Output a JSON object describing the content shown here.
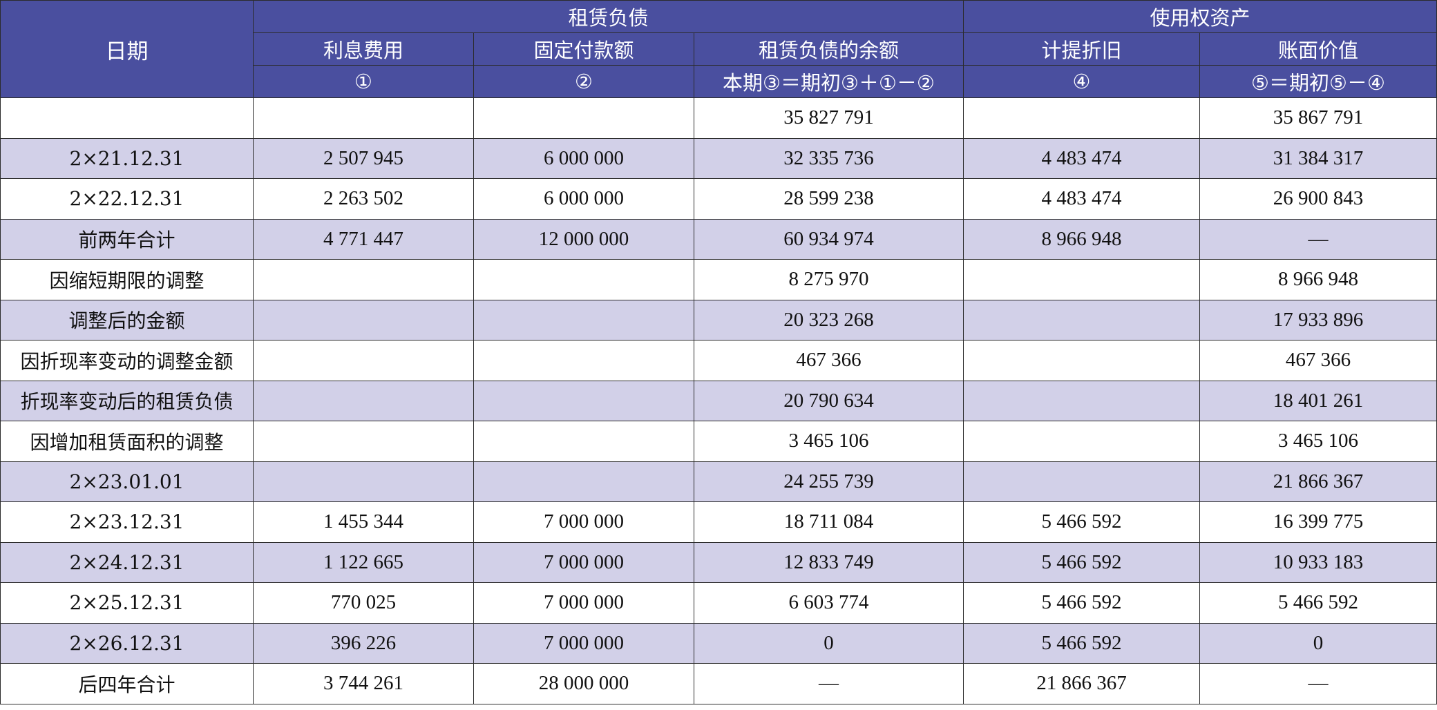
{
  "header": {
    "date_label": "日期",
    "lease_liability_group": "租赁负债",
    "rou_asset_group": "使用权资产",
    "columns": [
      {
        "label": "利息费用",
        "formula": "①"
      },
      {
        "label": "固定付款额",
        "formula": "②"
      },
      {
        "label": "租赁负债的余额",
        "formula": "本期③＝期初③＋①－②"
      },
      {
        "label": "计提折旧",
        "formula": "④"
      },
      {
        "label": "账面价值",
        "formula": "⑤＝期初⑤－④"
      }
    ]
  },
  "rows": [
    {
      "date": "",
      "interest": "",
      "payment": "",
      "balance": "35 827 791",
      "depreciation": "",
      "book_value": "35 867 791"
    },
    {
      "date": "2×21.12.31",
      "interest": "2 507 945",
      "payment": "6 000 000",
      "balance": "32 335 736",
      "depreciation": "4 483 474",
      "book_value": "31 384 317"
    },
    {
      "date": "2×22.12.31",
      "interest": "2 263 502",
      "payment": "6 000 000",
      "balance": "28 599 238",
      "depreciation": "4 483 474",
      "book_value": "26 900 843"
    },
    {
      "date": "前两年合计",
      "interest": "4 771 447",
      "payment": "12 000 000",
      "balance": "60 934 974",
      "depreciation": "8 966 948",
      "book_value": "—"
    },
    {
      "date": "因缩短期限的调整",
      "interest": "",
      "payment": "",
      "balance": "8 275 970",
      "depreciation": "",
      "book_value": "8 966 948"
    },
    {
      "date": "调整后的金额",
      "interest": "",
      "payment": "",
      "balance": "20 323 268",
      "depreciation": "",
      "book_value": "17 933 896"
    },
    {
      "date": "因折现率变动的调整金额",
      "interest": "",
      "payment": "",
      "balance": "467 366",
      "depreciation": "",
      "book_value": "467 366"
    },
    {
      "date": "折现率变动后的租赁负债",
      "interest": "",
      "payment": "",
      "balance": "20 790 634",
      "depreciation": "",
      "book_value": "18 401 261"
    },
    {
      "date": "因增加租赁面积的调整",
      "interest": "",
      "payment": "",
      "balance": "3 465 106",
      "depreciation": "",
      "book_value": "3 465 106"
    },
    {
      "date": "2×23.01.01",
      "interest": "",
      "payment": "",
      "balance": "24 255 739",
      "depreciation": "",
      "book_value": "21 866 367"
    },
    {
      "date": "2×23.12.31",
      "interest": "1 455 344",
      "payment": "7 000 000",
      "balance": "18 711 084",
      "depreciation": "5 466 592",
      "book_value": "16 399 775"
    },
    {
      "date": "2×24.12.31",
      "interest": "1 122 665",
      "payment": "7 000 000",
      "balance": "12 833 749",
      "depreciation": "5 466 592",
      "book_value": "10 933 183"
    },
    {
      "date": "2×25.12.31",
      "interest": "770 025",
      "payment": "7 000 000",
      "balance": "6 603 774",
      "depreciation": "5 466 592",
      "book_value": "5 466 592"
    },
    {
      "date": "2×26.12.31",
      "interest": "396 226",
      "payment": "7 000 000",
      "balance": "0",
      "depreciation": "5 466 592",
      "book_value": "0"
    },
    {
      "date": "后四年合计",
      "interest": "3 744 261",
      "payment": "28 000 000",
      "balance": "—",
      "depreciation": "21 866 367",
      "book_value": "—"
    }
  ],
  "colors": {
    "header_bg": "#4a4f9f",
    "header_text": "#ffffff",
    "row_shade": "#d2d0e8",
    "row_plain": "#ffffff"
  }
}
